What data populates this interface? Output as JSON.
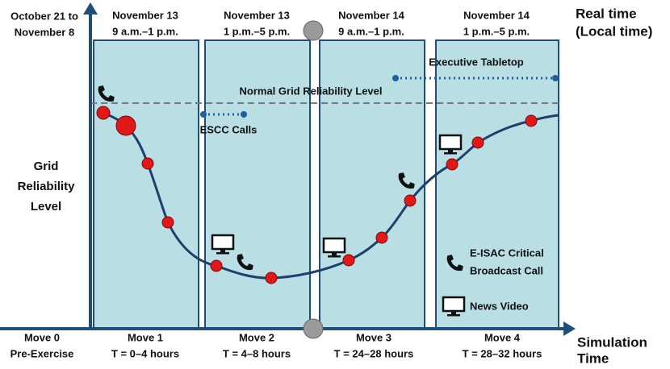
{
  "header": {
    "baseline": [
      "October 21 to",
      "November 8"
    ],
    "columns": [
      {
        "date": "November 13",
        "hours": "9 a.m.–1 p.m."
      },
      {
        "date": "November 13",
        "hours": "1 p.m.–5 p.m."
      },
      {
        "date": "November 14",
        "hours": "9 a.m.–1 p.m."
      },
      {
        "date": "November 14",
        "hours": "1 p.m.–5 p.m."
      }
    ],
    "real_time": [
      "Real time",
      "(Local time)"
    ]
  },
  "y_axis_label": [
    "Grid",
    "Reliability",
    "Level"
  ],
  "annotations": {
    "normal_level": "Normal Grid Reliability Level",
    "executive": "Executive Tabletop",
    "escc": "ESCC Calls"
  },
  "legend": {
    "call": [
      "E-ISAC Critical",
      "Broadcast Call"
    ],
    "video": "News Video"
  },
  "moves": [
    {
      "name": "Move 0",
      "detail": "Pre-Exercise"
    },
    {
      "name": "Move 1",
      "detail": "T = 0–4 hours"
    },
    {
      "name": "Move 2",
      "detail": "T = 4–8 hours"
    },
    {
      "name": "Move 3",
      "detail": "T = 24–28 hours"
    },
    {
      "name": "Move 4",
      "detail": "T = 28–32 hours"
    }
  ],
  "x_axis_label": [
    "Simulation",
    "Time"
  ]
}
